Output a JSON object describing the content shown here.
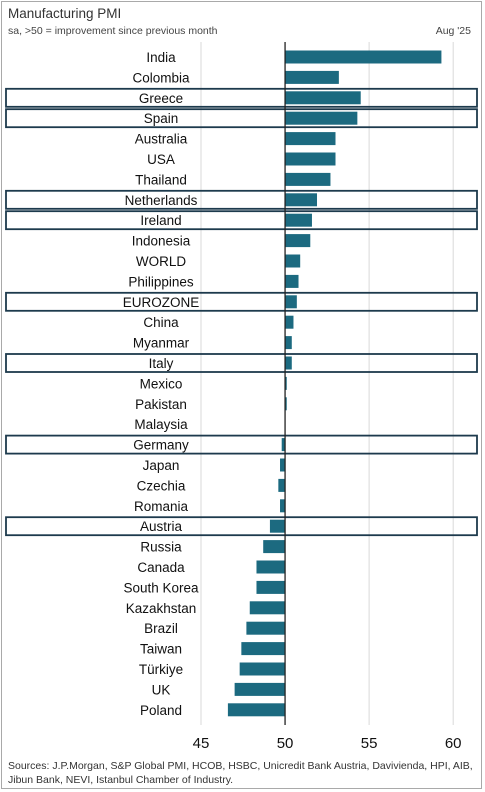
{
  "header": {
    "title": "Manufacturing PMI",
    "subtitle": "sa, >50 = improvement since previous month",
    "period": "Aug '25"
  },
  "footer": {
    "source": "Sources: J.P.Morgan, S&P Global PMI, HCOB, HSBC, Unicredit Bank Austria, Davivienda, HPI, AIB, Jibun Bank, NEVI, Istanbul Chamber of Industry."
  },
  "colors": {
    "bar": "#1c6a80",
    "highlight_box": "#1d3a4d",
    "gridline": "#d9d9d9",
    "axis_line": "#222222"
  },
  "chart_data": {
    "type": "bar",
    "orientation": "horizontal",
    "baseline": 50,
    "categories": [
      "India",
      "Colombia",
      "Greece",
      "Spain",
      "Australia",
      "USA",
      "Thailand",
      "Netherlands",
      "Ireland",
      "Indonesia",
      "WORLD",
      "Philippines",
      "EUROZONE",
      "China",
      "Myanmar",
      "Italy",
      "Mexico",
      "Pakistan",
      "Malaysia",
      "Germany",
      "Japan",
      "Czechia",
      "Romania",
      "Austria",
      "Russia",
      "Canada",
      "South Korea",
      "Kazakhstan",
      "Brazil",
      "Taiwan",
      "Türkiye",
      "UK",
      "Poland"
    ],
    "values": [
      59.3,
      53.2,
      54.5,
      54.3,
      53.0,
      53.0,
      52.7,
      51.9,
      51.6,
      51.5,
      50.9,
      50.8,
      50.7,
      50.5,
      50.4,
      50.4,
      50.1,
      50.1,
      50.0,
      49.8,
      49.7,
      49.6,
      49.7,
      49.1,
      48.7,
      48.3,
      48.3,
      47.9,
      47.7,
      47.4,
      47.3,
      47.0,
      46.6
    ],
    "highlighted": [
      "Greece",
      "Spain",
      "Netherlands",
      "Ireland",
      "EUROZONE",
      "Italy",
      "Germany",
      "Austria"
    ],
    "xlim": [
      45,
      61
    ],
    "xticks": [
      45,
      50,
      55,
      60
    ],
    "xlabel": "",
    "ylabel": "",
    "grid": true
  }
}
